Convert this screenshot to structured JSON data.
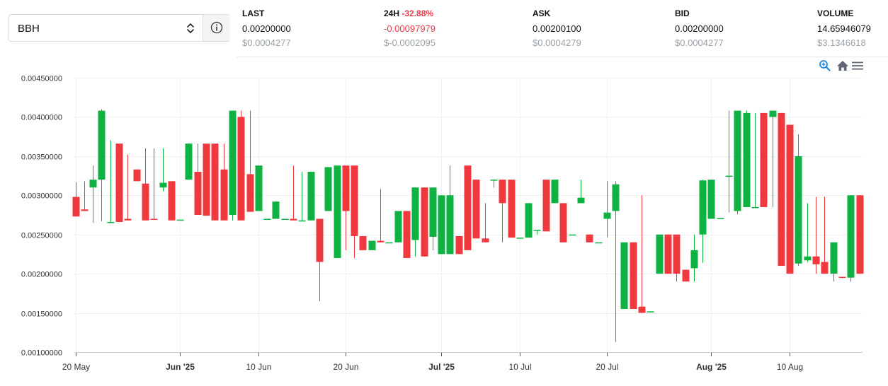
{
  "selector": {
    "value": "BBH"
  },
  "stats": [
    {
      "label": "LAST",
      "value": "0.00200000",
      "usd": "$0.0004277"
    },
    {
      "label": "24H",
      "change_pct": "-32.88%",
      "value": "-0.00097979",
      "usd": "$-0.0002095"
    },
    {
      "label": "ASK",
      "value": "0.00200100",
      "usd": "$0.0004279"
    },
    {
      "label": "BID",
      "value": "0.00200000",
      "usd": "$0.0004277"
    },
    {
      "label": "VOLUME",
      "value": "14.65946079",
      "usd": "$3.1346618"
    }
  ],
  "toolbar": {
    "icons": [
      "zoom-in-icon",
      "home-icon",
      "menu-icon"
    ]
  },
  "colors": {
    "up": "#0db243",
    "down": "#f0393e",
    "accent_negative": "#e8394a",
    "toolbar_zoom": "#1e88e5",
    "toolbar_gray": "#5f6673"
  },
  "chart_data": {
    "type": "candlestick",
    "title": "",
    "xlabel": "",
    "ylabel": "",
    "grid": true,
    "ylim": [
      0.001,
      0.0045
    ],
    "xlim": [
      "2025-05-20",
      "2025-08-19"
    ],
    "y_ticks": [
      "0.00100000",
      "0.00150000",
      "0.00200000",
      "0.00250000",
      "0.00300000",
      "0.00350000",
      "0.00400000",
      "0.00450000"
    ],
    "x_ticks": [
      {
        "date": "2025-05-20",
        "label": "20 May",
        "bold": false
      },
      {
        "date": "2025-06-01",
        "label": "Jun '25",
        "bold": true
      },
      {
        "date": "2025-06-10",
        "label": "10 Jun",
        "bold": false
      },
      {
        "date": "2025-06-20",
        "label": "20 Jun",
        "bold": false
      },
      {
        "date": "2025-07-01",
        "label": "Jul '25",
        "bold": true
      },
      {
        "date": "2025-07-10",
        "label": "10 Jul",
        "bold": false
      },
      {
        "date": "2025-07-20",
        "label": "20 Jul",
        "bold": false
      },
      {
        "date": "2025-08-01",
        "label": "Aug '25",
        "bold": true
      },
      {
        "date": "2025-08-10",
        "label": "10 Aug",
        "bold": false
      }
    ],
    "candles": [
      {
        "date": "2025-05-20",
        "o": 0.00298,
        "h": 0.00317,
        "l": 0.00273,
        "c": 0.00273
      },
      {
        "date": "2025-05-21",
        "o": 0.00282,
        "h": 0.00318,
        "l": 0.0028,
        "c": 0.0028
      },
      {
        "date": "2025-05-22",
        "o": 0.0031,
        "h": 0.00338,
        "l": 0.00265,
        "c": 0.0032
      },
      {
        "date": "2025-05-23",
        "o": 0.0032,
        "h": 0.0041,
        "l": 0.00267,
        "c": 0.00408
      },
      {
        "date": "2025-05-24",
        "o": 0.00265,
        "h": 0.0037,
        "l": 0.00265,
        "c": 0.00266
      },
      {
        "date": "2025-05-25",
        "o": 0.00366,
        "h": 0.00366,
        "l": 0.00266,
        "c": 0.00266
      },
      {
        "date": "2025-05-26",
        "o": 0.0027,
        "h": 0.00352,
        "l": 0.00268,
        "c": 0.00268
      },
      {
        "date": "2025-05-27",
        "o": 0.00333,
        "h": 0.00333,
        "l": 0.00318,
        "c": 0.00318
      },
      {
        "date": "2025-05-28",
        "o": 0.00315,
        "h": 0.0036,
        "l": 0.00268,
        "c": 0.00268
      },
      {
        "date": "2025-05-29",
        "o": 0.0027,
        "h": 0.0036,
        "l": 0.00269,
        "c": 0.00269
      },
      {
        "date": "2025-05-30",
        "o": 0.0031,
        "h": 0.0036,
        "l": 0.00305,
        "c": 0.00316
      },
      {
        "date": "2025-05-31",
        "o": 0.00318,
        "h": 0.00318,
        "l": 0.00268,
        "c": 0.00268
      },
      {
        "date": "2025-06-01",
        "o": 0.00269,
        "h": 0.00269,
        "l": 0.00269,
        "c": 0.00269
      },
      {
        "date": "2025-06-02",
        "o": 0.0032,
        "h": 0.00366,
        "l": 0.0032,
        "c": 0.00366
      },
      {
        "date": "2025-06-03",
        "o": 0.0033,
        "h": 0.00366,
        "l": 0.00275,
        "c": 0.00275
      },
      {
        "date": "2025-06-04",
        "o": 0.00366,
        "h": 0.00366,
        "l": 0.00274,
        "c": 0.00274
      },
      {
        "date": "2025-06-05",
        "o": 0.00366,
        "h": 0.00366,
        "l": 0.00268,
        "c": 0.00268
      },
      {
        "date": "2025-06-06",
        "o": 0.00333,
        "h": 0.00366,
        "l": 0.00268,
        "c": 0.00268
      },
      {
        "date": "2025-06-07",
        "o": 0.00275,
        "h": 0.00408,
        "l": 0.00268,
        "c": 0.00408
      },
      {
        "date": "2025-06-08",
        "o": 0.004,
        "h": 0.00408,
        "l": 0.00268,
        "c": 0.00268
      },
      {
        "date": "2025-06-09",
        "o": 0.00327,
        "h": 0.00408,
        "l": 0.00279,
        "c": 0.00279
      },
      {
        "date": "2025-06-10",
        "o": 0.0028,
        "h": 0.00338,
        "l": 0.0028,
        "c": 0.00338
      },
      {
        "date": "2025-06-11",
        "o": 0.0027,
        "h": 0.0027,
        "l": 0.0027,
        "c": 0.0027
      },
      {
        "date": "2025-06-12",
        "o": 0.0027,
        "h": 0.00292,
        "l": 0.0027,
        "c": 0.00292
      },
      {
        "date": "2025-06-13",
        "o": 0.0027,
        "h": 0.0027,
        "l": 0.0027,
        "c": 0.0027
      },
      {
        "date": "2025-06-14",
        "o": 0.0027,
        "h": 0.00338,
        "l": 0.00268,
        "c": 0.00268
      },
      {
        "date": "2025-06-15",
        "o": 0.00268,
        "h": 0.0033,
        "l": 0.00268,
        "c": 0.00268
      },
      {
        "date": "2025-06-16",
        "o": 0.00268,
        "h": 0.0033,
        "l": 0.00268,
        "c": 0.0033
      },
      {
        "date": "2025-06-17",
        "o": 0.0027,
        "h": 0.0027,
        "l": 0.00165,
        "c": 0.00215
      },
      {
        "date": "2025-06-18",
        "o": 0.0028,
        "h": 0.00336,
        "l": 0.0028,
        "c": 0.00336
      },
      {
        "date": "2025-06-19",
        "o": 0.0022,
        "h": 0.00338,
        "l": 0.0022,
        "c": 0.00338
      },
      {
        "date": "2025-06-20",
        "o": 0.00338,
        "h": 0.00338,
        "l": 0.0023,
        "c": 0.0028
      },
      {
        "date": "2025-06-21",
        "o": 0.00338,
        "h": 0.00338,
        "l": 0.0022,
        "c": 0.00248
      },
      {
        "date": "2025-06-22",
        "o": 0.00248,
        "h": 0.00248,
        "l": 0.0023,
        "c": 0.0023
      },
      {
        "date": "2025-06-23",
        "o": 0.0023,
        "h": 0.00242,
        "l": 0.0023,
        "c": 0.00242
      },
      {
        "date": "2025-06-24",
        "o": 0.00242,
        "h": 0.00308,
        "l": 0.0024,
        "c": 0.0024
      },
      {
        "date": "2025-06-25",
        "o": 0.0024,
        "h": 0.0024,
        "l": 0.0024,
        "c": 0.0024
      },
      {
        "date": "2025-06-26",
        "o": 0.0024,
        "h": 0.0028,
        "l": 0.0024,
        "c": 0.0028
      },
      {
        "date": "2025-06-27",
        "o": 0.0028,
        "h": 0.0028,
        "l": 0.0022,
        "c": 0.0022
      },
      {
        "date": "2025-06-28",
        "o": 0.00243,
        "h": 0.0031,
        "l": 0.00222,
        "c": 0.0031
      },
      {
        "date": "2025-06-29",
        "o": 0.0031,
        "h": 0.0031,
        "l": 0.00222,
        "c": 0.00222
      },
      {
        "date": "2025-06-30",
        "o": 0.00247,
        "h": 0.0031,
        "l": 0.0023,
        "c": 0.0031
      },
      {
        "date": "2025-07-01",
        "o": 0.00225,
        "h": 0.003,
        "l": 0.00225,
        "c": 0.003
      },
      {
        "date": "2025-07-02",
        "o": 0.00225,
        "h": 0.00338,
        "l": 0.00225,
        "c": 0.003
      },
      {
        "date": "2025-07-03",
        "o": 0.00248,
        "h": 0.00248,
        "l": 0.00225,
        "c": 0.00225
      },
      {
        "date": "2025-07-04",
        "o": 0.00338,
        "h": 0.00338,
        "l": 0.0023,
        "c": 0.0023
      },
      {
        "date": "2025-07-05",
        "o": 0.0032,
        "h": 0.0032,
        "l": 0.00245,
        "c": 0.00245
      },
      {
        "date": "2025-07-06",
        "o": 0.00245,
        "h": 0.0029,
        "l": 0.0024,
        "c": 0.0024
      },
      {
        "date": "2025-07-07",
        "o": 0.0032,
        "h": 0.0032,
        "l": 0.0031,
        "c": 0.0032
      },
      {
        "date": "2025-07-08",
        "o": 0.0032,
        "h": 0.0032,
        "l": 0.0024,
        "c": 0.0029
      },
      {
        "date": "2025-07-09",
        "o": 0.0032,
        "h": 0.0032,
        "l": 0.00246,
        "c": 0.00246
      },
      {
        "date": "2025-07-10",
        "o": 0.00246,
        "h": 0.00246,
        "l": 0.00246,
        "c": 0.00246
      },
      {
        "date": "2025-07-11",
        "o": 0.00246,
        "h": 0.0029,
        "l": 0.00246,
        "c": 0.0029
      },
      {
        "date": "2025-07-12",
        "o": 0.00256,
        "h": 0.00256,
        "l": 0.0025,
        "c": 0.00256
      },
      {
        "date": "2025-07-13",
        "o": 0.0032,
        "h": 0.0032,
        "l": 0.00254,
        "c": 0.00254
      },
      {
        "date": "2025-07-14",
        "o": 0.0029,
        "h": 0.0032,
        "l": 0.0029,
        "c": 0.0032
      },
      {
        "date": "2025-07-15",
        "o": 0.0029,
        "h": 0.0029,
        "l": 0.0024,
        "c": 0.0024
      },
      {
        "date": "2025-07-16",
        "o": 0.0025,
        "h": 0.0025,
        "l": 0.0025,
        "c": 0.0025
      },
      {
        "date": "2025-07-17",
        "o": 0.0029,
        "h": 0.0032,
        "l": 0.0029,
        "c": 0.00297
      },
      {
        "date": "2025-07-18",
        "o": 0.0025,
        "h": 0.0025,
        "l": 0.0024,
        "c": 0.0024
      },
      {
        "date": "2025-07-19",
        "o": 0.0024,
        "h": 0.0024,
        "l": 0.0024,
        "c": 0.0024
      },
      {
        "date": "2025-07-20",
        "o": 0.0027,
        "h": 0.00318,
        "l": 0.00246,
        "c": 0.00278
      },
      {
        "date": "2025-07-21",
        "o": 0.0028,
        "h": 0.00318,
        "l": 0.00113,
        "c": 0.00314
      },
      {
        "date": "2025-07-22",
        "o": 0.00155,
        "h": 0.0024,
        "l": 0.00155,
        "c": 0.0024
      },
      {
        "date": "2025-07-23",
        "o": 0.0024,
        "h": 0.0024,
        "l": 0.00155,
        "c": 0.00155
      },
      {
        "date": "2025-07-24",
        "o": 0.00158,
        "h": 0.003,
        "l": 0.0015,
        "c": 0.0015
      },
      {
        "date": "2025-07-25",
        "o": 0.00152,
        "h": 0.00152,
        "l": 0.00151,
        "c": 0.00152
      },
      {
        "date": "2025-07-26",
        "o": 0.002,
        "h": 0.0025,
        "l": 0.002,
        "c": 0.0025
      },
      {
        "date": "2025-07-27",
        "o": 0.0025,
        "h": 0.0025,
        "l": 0.002,
        "c": 0.002
      },
      {
        "date": "2025-07-28",
        "o": 0.0025,
        "h": 0.0025,
        "l": 0.0019,
        "c": 0.002
      },
      {
        "date": "2025-07-29",
        "o": 0.00205,
        "h": 0.00205,
        "l": 0.0019,
        "c": 0.0019
      },
      {
        "date": "2025-07-30",
        "o": 0.00207,
        "h": 0.0025,
        "l": 0.0019,
        "c": 0.0023
      },
      {
        "date": "2025-07-31",
        "o": 0.0025,
        "h": 0.0032,
        "l": 0.00214,
        "c": 0.00319
      },
      {
        "date": "2025-08-01",
        "o": 0.0027,
        "h": 0.0032,
        "l": 0.0027,
        "c": 0.0032
      },
      {
        "date": "2025-08-02",
        "o": 0.00271,
        "h": 0.00271,
        "l": 0.0027,
        "c": 0.00271
      },
      {
        "date": "2025-08-03",
        "o": 0.00325,
        "h": 0.00408,
        "l": 0.00278,
        "c": 0.00325
      },
      {
        "date": "2025-08-04",
        "o": 0.0028,
        "h": 0.00408,
        "l": 0.00276,
        "c": 0.00408
      },
      {
        "date": "2025-08-05",
        "o": 0.00285,
        "h": 0.00408,
        "l": 0.00285,
        "c": 0.00405
      },
      {
        "date": "2025-08-06",
        "o": 0.00285,
        "h": 0.00405,
        "l": 0.00285,
        "c": 0.00285
      },
      {
        "date": "2025-08-07",
        "o": 0.00405,
        "h": 0.00405,
        "l": 0.00285,
        "c": 0.00285
      },
      {
        "date": "2025-08-08",
        "o": 0.004,
        "h": 0.00408,
        "l": 0.00285,
        "c": 0.00408
      },
      {
        "date": "2025-08-09",
        "o": 0.00405,
        "h": 0.00405,
        "l": 0.0021,
        "c": 0.0021
      },
      {
        "date": "2025-08-10",
        "o": 0.0039,
        "h": 0.0039,
        "l": 0.002,
        "c": 0.002
      },
      {
        "date": "2025-08-11",
        "o": 0.00213,
        "h": 0.00378,
        "l": 0.0021,
        "c": 0.0035
      },
      {
        "date": "2025-08-12",
        "o": 0.00217,
        "h": 0.0029,
        "l": 0.00215,
        "c": 0.00222
      },
      {
        "date": "2025-08-13",
        "o": 0.00222,
        "h": 0.00298,
        "l": 0.002,
        "c": 0.00212
      },
      {
        "date": "2025-08-14",
        "o": 0.00215,
        "h": 0.00298,
        "l": 0.002,
        "c": 0.002
      },
      {
        "date": "2025-08-15",
        "o": 0.002,
        "h": 0.0024,
        "l": 0.0019,
        "c": 0.0024
      },
      {
        "date": "2025-08-16",
        "o": 0.00196,
        "h": 0.00196,
        "l": 0.00194,
        "c": 0.00195
      },
      {
        "date": "2025-08-17",
        "o": 0.00195,
        "h": 0.003,
        "l": 0.0019,
        "c": 0.003
      },
      {
        "date": "2025-08-18",
        "o": 0.003,
        "h": 0.003,
        "l": 0.002,
        "c": 0.002
      }
    ]
  }
}
